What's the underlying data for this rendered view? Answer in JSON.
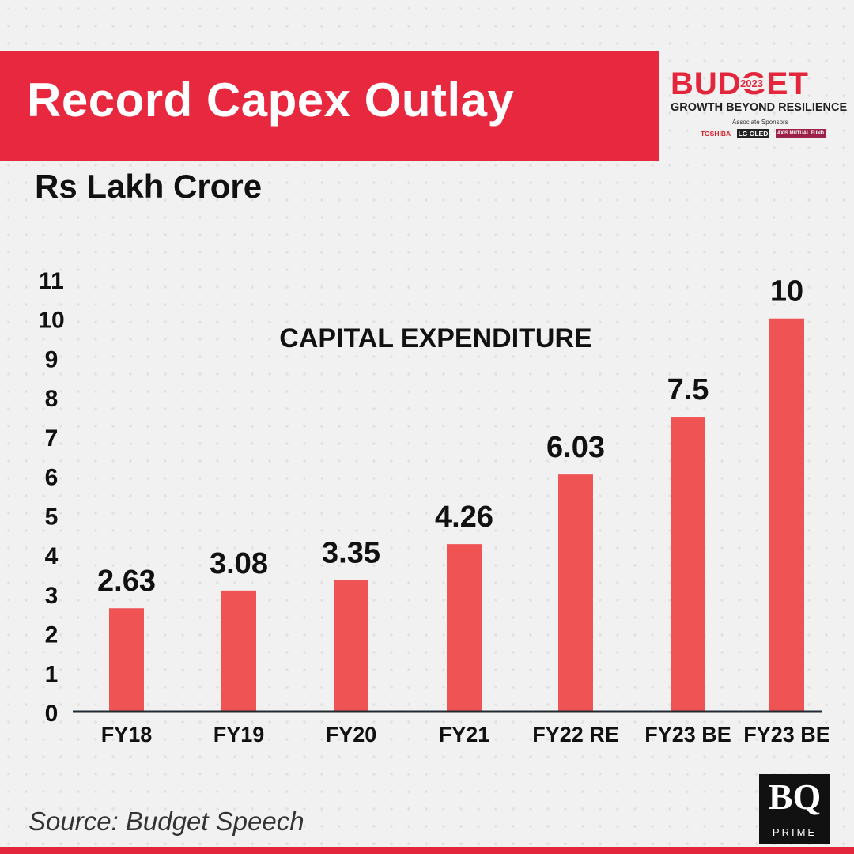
{
  "header": {
    "title": "Record Capex Outlay",
    "unit": "Rs Lakh Crore"
  },
  "branding": {
    "budget_word": "BUDGET",
    "budget_year": "2023",
    "tagline": "GROWTH BEYOND RESILIENCE",
    "sponsor_label": "Associate Sponsors",
    "sponsors": [
      "TOSHIBA",
      "LG OLED",
      "AXIS MUTUAL FUND"
    ],
    "publisher_mark": "BQ",
    "publisher_sub": "PRIME"
  },
  "footer": {
    "source": "Source: Budget Speech"
  },
  "colors": {
    "banner": "#e8283f",
    "bar": "#f05353",
    "axis": "#1f2a33"
  },
  "chart_data": {
    "type": "bar",
    "title": "CAPITAL EXPENDITURE",
    "xlabel": "",
    "ylabel": "Rs Lakh Crore",
    "ylim": [
      0,
      11
    ],
    "yticks": [
      0,
      1,
      2,
      3,
      4,
      5,
      6,
      7,
      8,
      9,
      10,
      11
    ],
    "grid": false,
    "categories": [
      "FY18",
      "FY19",
      "FY20",
      "FY21",
      "FY22 RE",
      "FY23 BE",
      "FY23 BE"
    ],
    "values": [
      2.63,
      3.08,
      3.35,
      4.26,
      6.03,
      7.5,
      10
    ],
    "value_labels": [
      "2.63",
      "3.08",
      "3.35",
      "4.26",
      "6.03",
      "7.5",
      "10"
    ]
  }
}
